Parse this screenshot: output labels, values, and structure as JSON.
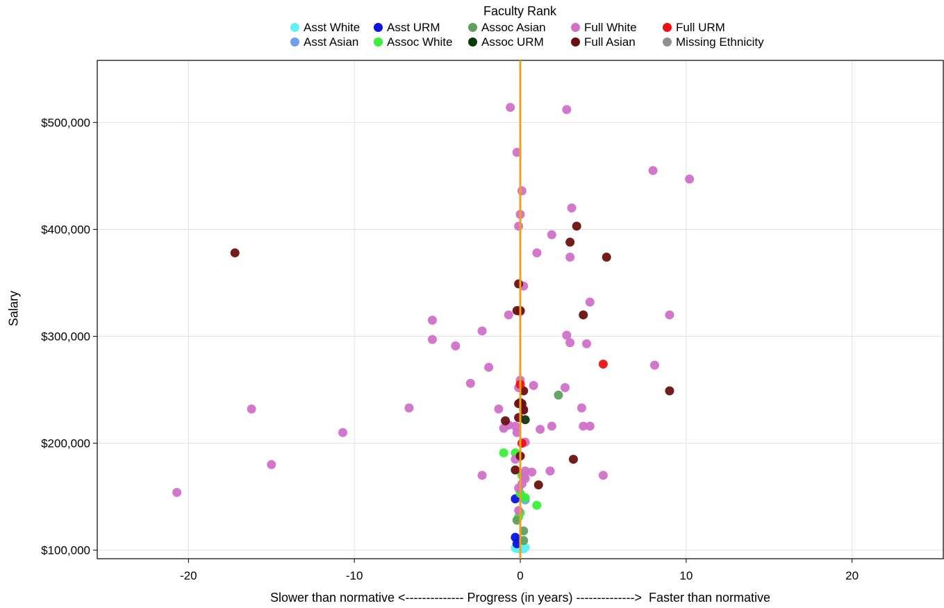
{
  "chart_data": {
    "type": "scatter",
    "title": "",
    "legend_title": "Faculty Rank",
    "legend_placement": "top",
    "xlabel": "Slower than normative <-------------- Progress (in years) -------------->  Faster than normative",
    "ylabel": "Salary",
    "xlim": [
      -25.5,
      25.5
    ],
    "ylim": [
      92000,
      558000
    ],
    "x_ticks": [
      -20,
      -10,
      0,
      10,
      20
    ],
    "x_tick_labels": [
      "-20",
      "-10",
      "0",
      "10",
      "20"
    ],
    "y_ticks": [
      100000,
      200000,
      300000,
      400000,
      500000
    ],
    "y_tick_labels": [
      "$100,000",
      "$200,000",
      "$300,000",
      "$400,000",
      "$500,000"
    ],
    "grid": true,
    "reference_line": {
      "x": 0,
      "color": "#f0a020"
    },
    "series": [
      {
        "name": "Asst White",
        "color": "#5ff0f8",
        "points": [
          [
            -0.2,
            101500
          ],
          [
            0,
            100800
          ],
          [
            0.2,
            101200
          ],
          [
            0.3,
            102500
          ],
          [
            -0.1,
            104000
          ],
          [
            0.1,
            103000
          ],
          [
            -0.3,
            102000
          ]
        ]
      },
      {
        "name": "Asst Asian",
        "color": "#6fa0f0",
        "points": [
          [
            0.3,
            147000
          ],
          [
            0,
            152000
          ],
          [
            -0.1,
            110000
          ]
        ]
      },
      {
        "name": "Asst URM",
        "color": "#0a14e0",
        "points": [
          [
            -0.3,
            148000
          ],
          [
            -0.3,
            112000
          ],
          [
            -0.2,
            106000
          ]
        ]
      },
      {
        "name": "Assoc White",
        "color": "#38f038",
        "points": [
          [
            -1,
            191000
          ],
          [
            -0.3,
            191000
          ],
          [
            0.1,
            170000
          ],
          [
            0,
            153000
          ],
          [
            0.3,
            149000
          ],
          [
            1,
            142000
          ],
          [
            0,
            135000
          ],
          [
            -0.1,
            131000
          ]
        ]
      },
      {
        "name": "Assoc Asian",
        "color": "#5f9f5f",
        "points": [
          [
            2.3,
            245000
          ],
          [
            0.2,
            170000
          ],
          [
            0.2,
            118000
          ],
          [
            -0.2,
            128000
          ],
          [
            0.2,
            109000
          ]
        ]
      },
      {
        "name": "Assoc URM",
        "color": "#0a3a0a",
        "points": [
          [
            0.3,
            222000
          ]
        ]
      },
      {
        "name": "Full White",
        "color": "#d070c8",
        "points": [
          [
            -0.6,
            514000
          ],
          [
            2.8,
            512000
          ],
          [
            -0.2,
            472000
          ],
          [
            0.1,
            436000
          ],
          [
            8,
            455000
          ],
          [
            10.2,
            447000
          ],
          [
            3.1,
            420000
          ],
          [
            0,
            414000
          ],
          [
            -0.1,
            403000
          ],
          [
            1.9,
            395000
          ],
          [
            1,
            378000
          ],
          [
            3,
            374000
          ],
          [
            0.2,
            347000
          ],
          [
            4.2,
            332000
          ],
          [
            -0.7,
            320000
          ],
          [
            0,
            323000
          ],
          [
            9,
            320000
          ],
          [
            -5.3,
            315000
          ],
          [
            -2.3,
            305000
          ],
          [
            2.8,
            301000
          ],
          [
            -5.3,
            297000
          ],
          [
            3,
            294000
          ],
          [
            4,
            293000
          ],
          [
            -3.9,
            291000
          ],
          [
            -1.9,
            271000
          ],
          [
            8.1,
            273000
          ],
          [
            -3,
            256000
          ],
          [
            0,
            259000
          ],
          [
            0.8,
            254000
          ],
          [
            2.7,
            252000
          ],
          [
            -0.1,
            252000
          ],
          [
            -6.7,
            233000
          ],
          [
            -16.2,
            232000
          ],
          [
            -1.3,
            232000
          ],
          [
            0.2,
            232000
          ],
          [
            3.7,
            233000
          ],
          [
            -0.7,
            217000
          ],
          [
            -1,
            214000
          ],
          [
            -0.3,
            216000
          ],
          [
            1.9,
            216000
          ],
          [
            3.8,
            216000
          ],
          [
            4.2,
            216000
          ],
          [
            -10.7,
            210000
          ],
          [
            -0.2,
            210000
          ],
          [
            1.2,
            213000
          ],
          [
            0.3,
            201000
          ],
          [
            -15,
            180000
          ],
          [
            -0.3,
            185000
          ],
          [
            0.3,
            174000
          ],
          [
            0.7,
            173000
          ],
          [
            1.8,
            174000
          ],
          [
            -2.3,
            170000
          ],
          [
            5,
            170000
          ],
          [
            0.3,
            167000
          ],
          [
            0.1,
            162000
          ],
          [
            -0.1,
            158000
          ],
          [
            -20.7,
            154000
          ],
          [
            -0.1,
            137000
          ]
        ]
      },
      {
        "name": "Full Asian",
        "color": "#6a1010",
        "points": [
          [
            -17.2,
            378000
          ],
          [
            3.4,
            403000
          ],
          [
            3,
            388000
          ],
          [
            5.2,
            374000
          ],
          [
            -0.1,
            349000
          ],
          [
            -0.2,
            324000
          ],
          [
            0,
            324000
          ],
          [
            3.8,
            320000
          ],
          [
            9,
            249000
          ],
          [
            0.2,
            249000
          ],
          [
            0,
            238000
          ],
          [
            0.1,
            237000
          ],
          [
            -0.1,
            237000
          ],
          [
            -0.9,
            221000
          ],
          [
            -0.1,
            224000
          ],
          [
            0.2,
            231000
          ],
          [
            0,
            188000
          ],
          [
            -0.3,
            175000
          ],
          [
            3.2,
            185000
          ],
          [
            1.1,
            161000
          ]
        ]
      },
      {
        "name": "Full URM",
        "color": "#f01010",
        "points": [
          [
            5,
            274000
          ],
          [
            0,
            255000
          ],
          [
            0.1,
            200000
          ]
        ]
      },
      {
        "name": "Missing Ethnicity",
        "color": "#909090",
        "points": []
      }
    ],
    "legend_rows": [
      [
        "Asst White",
        "Asst URM",
        "Assoc Asian",
        "Full White",
        "Full URM"
      ],
      [
        "Asst Asian",
        "Assoc White",
        "Assoc URM",
        "Full Asian",
        "Missing Ethnicity"
      ]
    ]
  }
}
